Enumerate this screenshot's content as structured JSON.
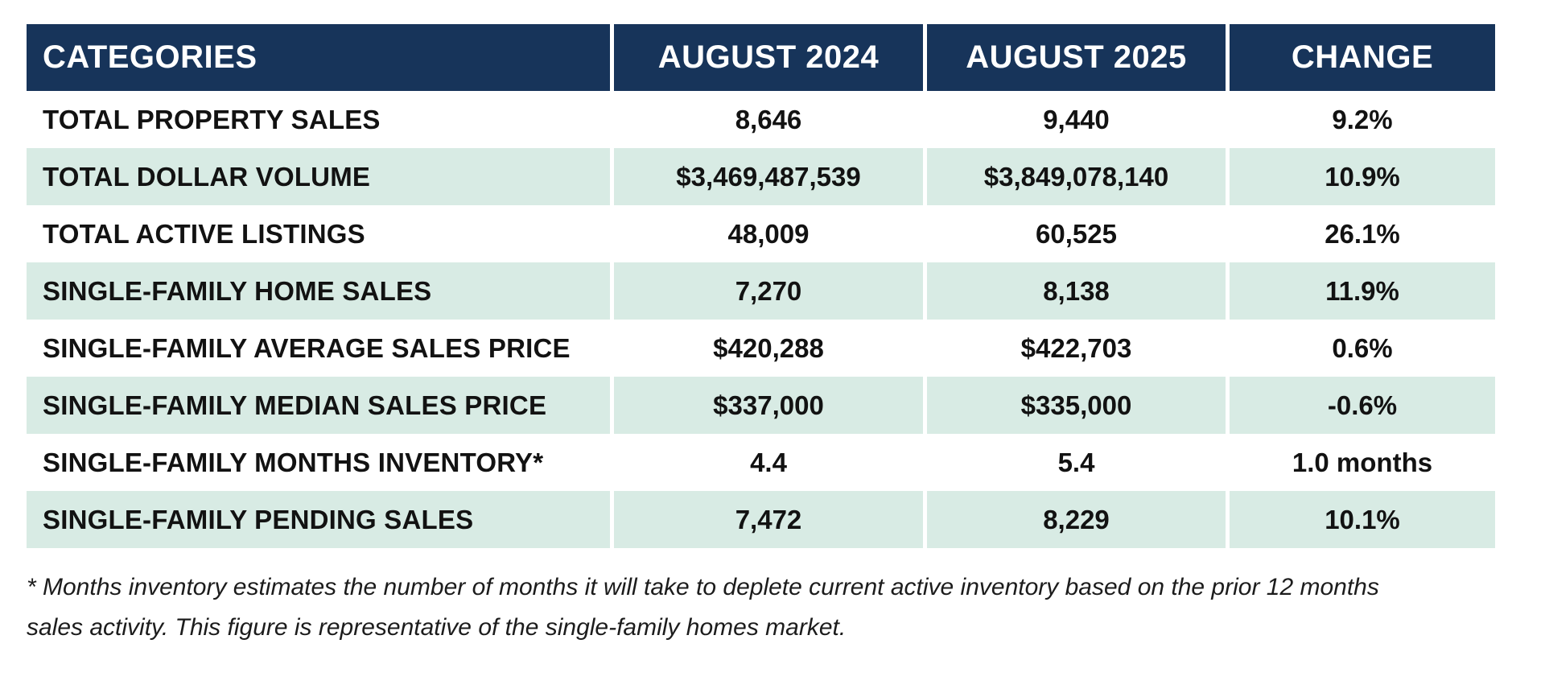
{
  "colors": {
    "header_bg": "#17345A",
    "row_alt_bg": "#D8EBE4",
    "header_text": "#FFFFFF",
    "body_text": "#121212"
  },
  "table": {
    "columns": [
      "CATEGORIES",
      "AUGUST 2024",
      "AUGUST 2025",
      "CHANGE"
    ],
    "rows": [
      {
        "category": "TOTAL PROPERTY SALES",
        "aug2024": "8,646",
        "aug2025": "9,440",
        "change": "9.2%"
      },
      {
        "category": "TOTAL DOLLAR VOLUME",
        "aug2024": "$3,469,487,539",
        "aug2025": "$3,849,078,140",
        "change": "10.9%"
      },
      {
        "category": "TOTAL ACTIVE LISTINGS",
        "aug2024": "48,009",
        "aug2025": "60,525",
        "change": "26.1%"
      },
      {
        "category": "SINGLE-FAMILY HOME SALES",
        "aug2024": "7,270",
        "aug2025": "8,138",
        "change": "11.9%"
      },
      {
        "category": "SINGLE-FAMILY AVERAGE SALES PRICE",
        "aug2024": "$420,288",
        "aug2025": "$422,703",
        "change": "0.6%"
      },
      {
        "category": "SINGLE-FAMILY MEDIAN SALES PRICE",
        "aug2024": "$337,000",
        "aug2025": "$335,000",
        "change": "-0.6%"
      },
      {
        "category": "SINGLE-FAMILY MONTHS INVENTORY*",
        "aug2024": "4.4",
        "aug2025": "5.4",
        "change": "1.0 months"
      },
      {
        "category": "SINGLE-FAMILY PENDING SALES",
        "aug2024": "7,472",
        "aug2025": "8,229",
        "change": "10.1%"
      }
    ]
  },
  "footnote": {
    "lines": [
      "* Months inventory estimates the number of months it will take to deplete current active inventory based on the prior 12 months",
      "sales activity. This figure is representative of the single-family homes market."
    ]
  },
  "chart_data": {
    "type": "table",
    "title": "",
    "columns": [
      "CATEGORIES",
      "AUGUST 2024",
      "AUGUST 2025",
      "CHANGE"
    ],
    "categories": [
      "TOTAL PROPERTY SALES",
      "TOTAL DOLLAR VOLUME",
      "TOTAL ACTIVE LISTINGS",
      "SINGLE-FAMILY HOME SALES",
      "SINGLE-FAMILY AVERAGE SALES PRICE",
      "SINGLE-FAMILY MEDIAN SALES PRICE",
      "SINGLE-FAMILY MONTHS INVENTORY*",
      "SINGLE-FAMILY PENDING SALES"
    ],
    "series": [
      {
        "name": "AUGUST 2024",
        "values": [
          8646,
          3469487539,
          48009,
          7270,
          420288,
          337000,
          4.4,
          7472
        ]
      },
      {
        "name": "AUGUST 2025",
        "values": [
          9440,
          3849078140,
          60525,
          8138,
          422703,
          335000,
          5.4,
          8229
        ]
      },
      {
        "name": "CHANGE",
        "values": [
          "9.2%",
          "10.9%",
          "26.1%",
          "11.9%",
          "0.6%",
          "-0.6%",
          "1.0 months",
          "10.1%"
        ]
      }
    ]
  }
}
